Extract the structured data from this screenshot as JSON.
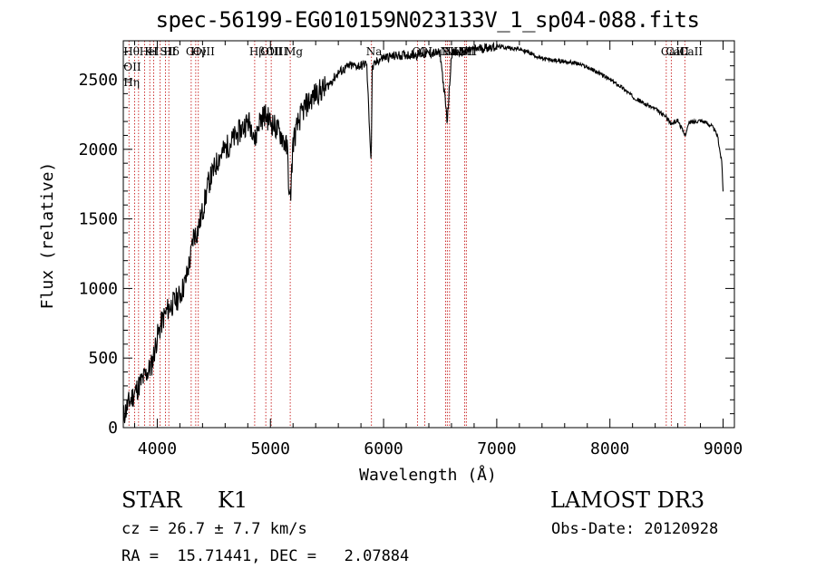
{
  "chart_data": {
    "type": "line",
    "title": "spec-56199-EG010159N023133V_1_sp04-088.fits",
    "xlabel": "Wavelength (Å)",
    "ylabel": "Flux (relative)",
    "xlim": [
      3700,
      9100
    ],
    "ylim": [
      0,
      2780
    ],
    "xticks": [
      4000,
      5000,
      6000,
      7000,
      8000,
      9000
    ],
    "yticks": [
      0,
      500,
      1000,
      1500,
      2000,
      2500
    ],
    "grid": false,
    "series": [
      {
        "name": "flux",
        "x": [
          3700,
          3750,
          3800,
          3850,
          3900,
          3950,
          4000,
          4050,
          4100,
          4150,
          4200,
          4250,
          4300,
          4320,
          4350,
          4400,
          4450,
          4500,
          4550,
          4600,
          4650,
          4700,
          4750,
          4800,
          4850,
          4860,
          4900,
          4950,
          5000,
          5050,
          5100,
          5150,
          5170,
          5180,
          5200,
          5250,
          5300,
          5400,
          5500,
          5600,
          5700,
          5800,
          5850,
          5890,
          5900,
          5950,
          6000,
          6100,
          6200,
          6300,
          6400,
          6500,
          6563,
          6600,
          6700,
          6800,
          6900,
          7000,
          7100,
          7200,
          7300,
          7400,
          7500,
          7600,
          7700,
          7800,
          7900,
          8000,
          8100,
          8200,
          8300,
          8400,
          8500,
          8542,
          8600,
          8662,
          8700,
          8800,
          8900,
          8950,
          8990,
          9000
        ],
        "y": [
          80,
          180,
          250,
          320,
          380,
          450,
          650,
          780,
          860,
          900,
          950,
          1050,
          1250,
          1380,
          1400,
          1550,
          1750,
          1850,
          1950,
          2000,
          2050,
          2100,
          2150,
          2200,
          2150,
          2050,
          2200,
          2250,
          2200,
          2150,
          2100,
          2000,
          1600,
          1700,
          2050,
          2200,
          2300,
          2400,
          2450,
          2550,
          2600,
          2600,
          2620,
          1900,
          2580,
          2640,
          2660,
          2670,
          2680,
          2680,
          2690,
          2690,
          2200,
          2690,
          2700,
          2720,
          2730,
          2740,
          2730,
          2720,
          2690,
          2650,
          2640,
          2630,
          2620,
          2590,
          2550,
          2500,
          2450,
          2380,
          2330,
          2290,
          2230,
          2180,
          2210,
          2100,
          2190,
          2210,
          2170,
          2100,
          1900,
          1700
        ]
      }
    ],
    "lines": [
      {
        "wl": 3750,
        "labels": [
          "Hθ",
          "OII",
          "Hη"
        ]
      },
      {
        "wl": 3800,
        "labels": []
      },
      {
        "wl": 3835,
        "labels": []
      },
      {
        "wl": 3889,
        "labels": [
          "He"
        ]
      },
      {
        "wl": 3934,
        "labels": [
          "K"
        ]
      },
      {
        "wl": 3968,
        "labels": [
          "H"
        ]
      },
      {
        "wl": 4026,
        "labels": [
          "I"
        ]
      },
      {
        "wl": 4072,
        "labels": [
          "SII"
        ]
      },
      {
        "wl": 4102,
        "labels": [
          "Hδ"
        ]
      },
      {
        "wl": 4300,
        "labels": [
          "G"
        ]
      },
      {
        "wl": 4340,
        "labels": [
          "Hγ"
        ]
      },
      {
        "wl": 4363,
        "labels": [
          "OIII"
        ]
      },
      {
        "wl": 4861,
        "labels": [
          "Hβ"
        ]
      },
      {
        "wl": 4959,
        "labels": [
          "OIII"
        ]
      },
      {
        "wl": 5007,
        "labels": [
          "OIII"
        ]
      },
      {
        "wl": 5175,
        "labels": [
          "Mg"
        ]
      },
      {
        "wl": 5893,
        "labels": [
          "Na"
        ]
      },
      {
        "wl": 6300,
        "labels": [
          "OI"
        ]
      },
      {
        "wl": 6364,
        "labels": [
          "OI"
        ]
      },
      {
        "wl": 6548,
        "labels": [
          "NII"
        ]
      },
      {
        "wl": 6563,
        "labels": [
          "Hα"
        ]
      },
      {
        "wl": 6583,
        "labels": [
          "NII"
        ]
      },
      {
        "wl": 6716,
        "labels": [
          "SII"
        ]
      },
      {
        "wl": 6731,
        "labels": [
          "SII"
        ]
      },
      {
        "wl": 8498,
        "labels": [
          "CaII"
        ]
      },
      {
        "wl": 8542,
        "labels": [
          "CaII"
        ]
      },
      {
        "wl": 8662,
        "labels": [
          "CaII"
        ]
      }
    ]
  },
  "info": {
    "class": "STAR",
    "subclass": "K1",
    "survey": "LAMOST DR3",
    "cz": "cz = 26.7 ± 7.7 km/s",
    "obs_date": "Obs-Date: 20120928",
    "radec": "RA =  15.71441, DEC =   2.07884"
  },
  "colors": {
    "axis": "#000000",
    "line_marker": "#c00000"
  }
}
